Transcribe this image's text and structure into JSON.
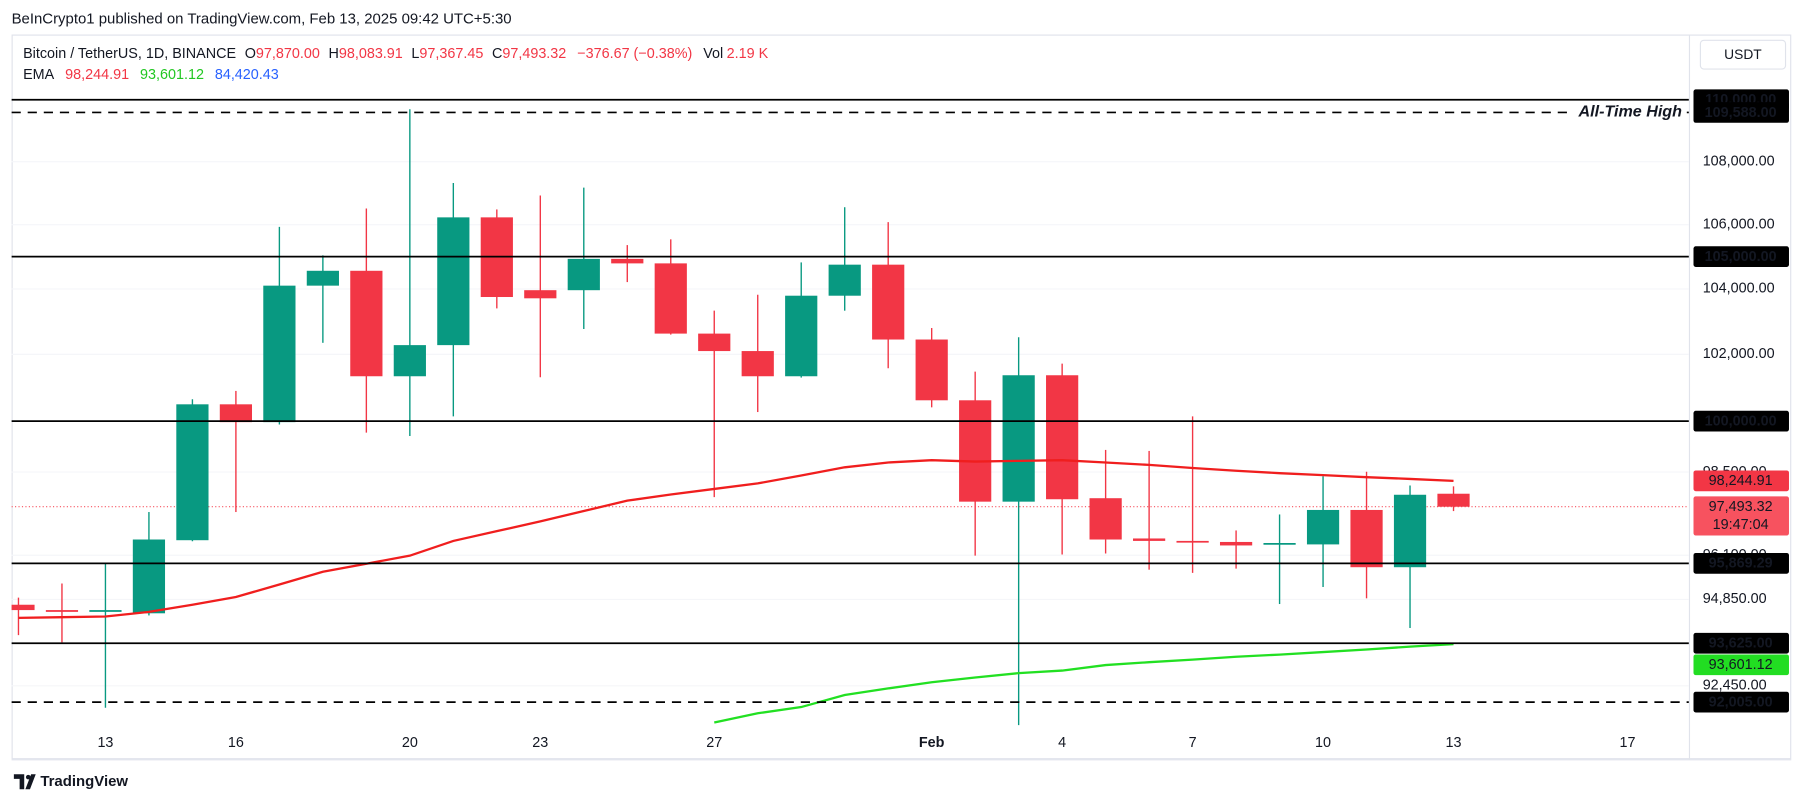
{
  "byline": "BeInCrypto1 published on TradingView.com, Feb 13, 2025 09:42 UTC+5:30",
  "footer": "TradingView",
  "chart_data": {
    "type": "candlestick",
    "legend": {
      "symbol": "Bitcoin / TetherUS, 1D, BINANCE",
      "ohlc": [
        {
          "label": "O",
          "value": "97,870.00"
        },
        {
          "label": "H",
          "value": "98,083.91"
        },
        {
          "label": "L",
          "value": "97,367.45"
        },
        {
          "label": "C",
          "value": "97,493.32"
        }
      ],
      "change": "−376.67 (−0.38%)",
      "volume": {
        "label": "Vol",
        "value": "2.19 K"
      },
      "value_color": "#f23645"
    },
    "ema_legend": {
      "label": "EMA",
      "values": [
        {
          "value": "98,244.91",
          "color": "#f23645"
        },
        {
          "value": "93,601.12",
          "color": "#22c722"
        },
        {
          "value": "84,420.43",
          "color": "#2962ff"
        }
      ]
    },
    "axis_unit": "USDT",
    "categories": [
      null,
      null,
      "13",
      null,
      null,
      "16",
      null,
      null,
      null,
      "20",
      null,
      null,
      "23",
      null,
      null,
      null,
      "27",
      null,
      null,
      null,
      null,
      "Feb",
      null,
      null,
      "4",
      null,
      null,
      "7",
      null,
      null,
      "10",
      null,
      null,
      "13",
      null,
      null,
      null,
      "17"
    ],
    "open": [
      94700,
      94550,
      94500,
      94460,
      96530,
      100500,
      99970,
      104100,
      104560,
      101340,
      102280,
      106230,
      103960,
      103960,
      104930,
      104790,
      102630,
      102100,
      101340,
      103790,
      104750,
      102450,
      100620,
      97640,
      101370,
      97740,
      96580,
      96510,
      96480,
      96410,
      96410,
      97400,
      95760,
      97870,
      null,
      null,
      null,
      null
    ],
    "high": [
      94900,
      95300,
      95880,
      97340,
      100650,
      100900,
      105930,
      105040,
      106510,
      109690,
      107320,
      106480,
      106920,
      107170,
      105360,
      105540,
      103330,
      103820,
      104820,
      106550,
      106080,
      102800,
      101480,
      102520,
      101720,
      99150,
      99120,
      100140,
      96810,
      97270,
      98380,
      98510,
      98110,
      98083.91,
      null,
      null,
      null,
      null
    ],
    "low": [
      93850,
      93650,
      91850,
      94400,
      96500,
      97340,
      99900,
      102350,
      99660,
      99560,
      100140,
      103400,
      101310,
      102770,
      104210,
      102600,
      97770,
      100270,
      101300,
      103330,
      101580,
      100410,
      96090,
      91380,
      96120,
      96150,
      95690,
      95600,
      95720,
      94720,
      95200,
      94880,
      94050,
      97367.45,
      null,
      null,
      null,
      null
    ],
    "close": [
      94550,
      94500,
      94550,
      96550,
      100500,
      99970,
      104100,
      104560,
      101340,
      102280,
      106230,
      103750,
      103710,
      104930,
      104790,
      102630,
      102100,
      101340,
      103790,
      104750,
      102450,
      100620,
      97640,
      101370,
      97710,
      96550,
      96510,
      96480,
      96380,
      96450,
      97400,
      95760,
      97840,
      97493.32,
      null,
      null,
      null,
      null
    ],
    "up_color": "#089981",
    "down_color": "#f23645",
    "series": [
      {
        "name": "EMA",
        "color": "#f01e1e",
        "values": [
          94330,
          94350,
          94370,
          94500,
          94700,
          94920,
          95270,
          95630,
          95860,
          96090,
          96510,
          96790,
          97070,
          97370,
          97670,
          97850,
          98010,
          98170,
          98400,
          98640,
          98780,
          98850,
          98810,
          98830,
          98850,
          98780,
          98710,
          98620,
          98540,
          98470,
          98410,
          98350,
          98300,
          98244.91,
          null,
          null,
          null,
          null
        ]
      },
      {
        "name": "EMA",
        "color": "#22e022",
        "values": [
          null,
          null,
          null,
          null,
          null,
          null,
          null,
          null,
          null,
          null,
          null,
          null,
          null,
          null,
          null,
          null,
          91450,
          91700,
          91870,
          92200,
          92380,
          92550,
          92680,
          92800,
          92870,
          93020,
          93100,
          93170,
          93250,
          93310,
          93380,
          93450,
          93530,
          93601.12,
          null,
          null,
          null,
          null
        ]
      }
    ],
    "log_scale": true,
    "ylim": [
      90550,
      112150
    ],
    "yticks": [
      {
        "value": 108000,
        "label": "108,000.00"
      },
      {
        "value": 106000,
        "label": "106,000.00"
      },
      {
        "value": 104000,
        "label": "104,000.00"
      },
      {
        "value": 102000,
        "label": "102,000.00"
      },
      {
        "value": 98500,
        "label": "98,500.00"
      },
      {
        "value": 96100,
        "label": "96,100.00"
      },
      {
        "value": 94850,
        "label": "94,850.00"
      },
      {
        "value": 92450,
        "label": "92,450.00"
      }
    ],
    "levels": [
      {
        "value": 110000,
        "label": "110,000.00",
        "style": "solid"
      },
      {
        "value": 109588,
        "label": "109,588.00",
        "style": "dashed",
        "annotation": "All-Time High"
      },
      {
        "value": 105000,
        "label": "105,000.00",
        "style": "solid"
      },
      {
        "value": 100000,
        "label": "100,000.00",
        "style": "solid"
      },
      {
        "value": 95869.29,
        "label": "95,869.29",
        "style": "solid"
      },
      {
        "value": 93625,
        "label": "93,625.00",
        "style": "solid"
      },
      {
        "value": 92005,
        "label": "92,005.00",
        "style": "dashed"
      }
    ],
    "price_labels": [
      {
        "value": 98244.91,
        "label": "98,244.91",
        "color": "#f23645"
      },
      {
        "value": 97493.32,
        "label": "97,493.32",
        "color": "#f7525f",
        "countdown": "19:47:04",
        "line": true
      },
      {
        "value": 93601.12,
        "label": "93,601.12",
        "color": "#22dd22"
      }
    ]
  }
}
